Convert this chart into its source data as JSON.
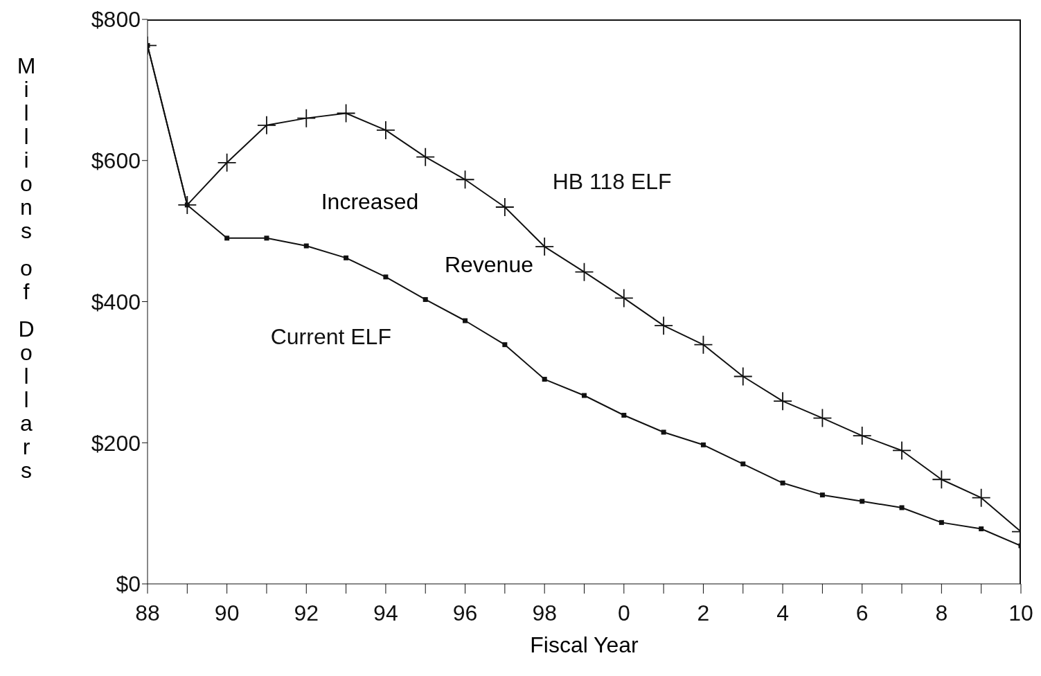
{
  "chart_data": {
    "type": "line",
    "xlabel": "Fiscal Year",
    "ylabel": "Millions of Dollars",
    "categories": [
      "88",
      null,
      "90",
      null,
      "92",
      null,
      "94",
      null,
      "96",
      null,
      "98",
      null,
      "0",
      null,
      "2",
      null,
      "4",
      null,
      "6",
      null,
      "8",
      null,
      "10"
    ],
    "series": [
      {
        "name": "HB 118 ELF",
        "color": "#111111",
        "marker": "cross",
        "values": [
          763,
          537,
          597,
          650,
          660,
          667,
          643,
          605,
          573,
          534,
          478,
          442,
          405,
          366,
          339,
          294,
          259,
          235,
          210,
          189,
          148,
          122,
          74
        ]
      },
      {
        "name": "Current ELF",
        "color": "#111111",
        "marker": "square",
        "values": [
          763,
          537,
          490,
          490,
          479,
          462,
          435,
          403,
          373,
          339,
          290,
          267,
          239,
          215,
          197,
          170,
          143,
          126,
          117,
          108,
          87,
          78,
          54
        ]
      }
    ],
    "annotations": [
      "Increased",
      "Revenue"
    ],
    "ylim": [
      0,
      800
    ],
    "yticks": [
      {
        "value": 0,
        "label": "$0"
      },
      {
        "value": 200,
        "label": "$200"
      },
      {
        "value": 400,
        "label": "$400"
      },
      {
        "value": 600,
        "label": "$600"
      },
      {
        "value": 800,
        "label": "$800"
      }
    ],
    "grid": false,
    "legend": false,
    "line_style": "solid"
  }
}
